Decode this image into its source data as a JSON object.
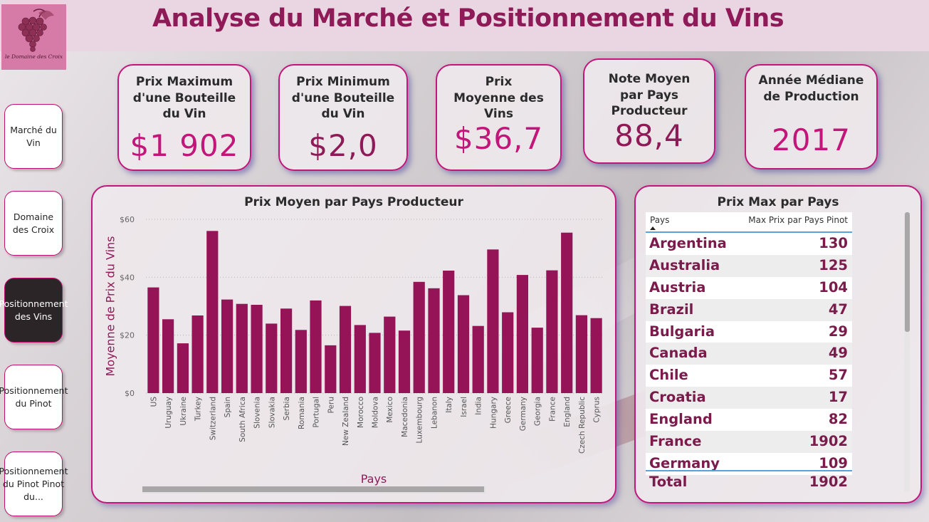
{
  "app": {
    "title": "Analyse du Marché et Positionnement du Vins",
    "logo_text": "le Domaine des Croix"
  },
  "colors": {
    "accent": "#c2177a",
    "bar": "#951458",
    "title": "#8e1a57",
    "active_nav": "#2c2527"
  },
  "nav": {
    "items": [
      {
        "label": "Marché du Vin",
        "active": false
      },
      {
        "label": "Domaine des Croix",
        "active": false
      },
      {
        "label": "Positionnement des Vins",
        "active": true
      },
      {
        "label": "Positionnement du Pinot",
        "active": false
      },
      {
        "label": "Positionnement du Pinot Pinot du...",
        "active": false
      }
    ]
  },
  "kpis": [
    {
      "title": "Prix Maximum d'une Bouteille du Vin",
      "value": "$1 902",
      "color": "#c2177a"
    },
    {
      "title": "Prix Minimum d'une Bouteille du Vin",
      "value": "$2,0",
      "color": "#8e1a57"
    },
    {
      "title": "Prix Moyenne des Vins",
      "value": "$36,7",
      "color": "#c2177a"
    },
    {
      "title": "Note Moyen par Pays Producteur",
      "value": "88,4",
      "color": "#8e1a57"
    },
    {
      "title": "Année Médiane de Production",
      "value": "2017",
      "color": "#c2177a"
    }
  ],
  "chart_data": {
    "type": "bar",
    "title": "Prix Moyen par Pays Producteur",
    "xlabel": "Pays",
    "ylabel": "Moyenne de Prix du Vins",
    "ylim": [
      0,
      60
    ],
    "yticks": [
      "$0",
      "$20",
      "$40",
      "$60"
    ],
    "grid": true,
    "categories": [
      "US",
      "Uruguay",
      "Ukraine",
      "Turkey",
      "Switzerland",
      "Spain",
      "South Africa",
      "Slovenia",
      "Slovakia",
      "Serbia",
      "Romania",
      "Portugal",
      "Peru",
      "New Zealand",
      "Morocco",
      "Moldova",
      "Mexico",
      "Macedonia",
      "Luxembourg",
      "Lebanon",
      "Italy",
      "Israel",
      "India",
      "Hungary",
      "Greece",
      "Germany",
      "Georgia",
      "France",
      "England",
      "Czech Republic",
      "Cyprus"
    ],
    "values": [
      36.5,
      25.5,
      17.2,
      26.8,
      56.0,
      32.3,
      30.8,
      30.5,
      24.0,
      29.2,
      21.8,
      32.0,
      16.5,
      30.1,
      23.5,
      20.8,
      26.4,
      21.6,
      38.4,
      36.2,
      42.3,
      33.8,
      23.2,
      49.6,
      27.9,
      40.8,
      22.6,
      42.4,
      55.4,
      26.9,
      25.9
    ]
  },
  "table": {
    "title": "Prix Max par Pays",
    "columns": [
      "Pays",
      "Max Prix par Pays Pinot"
    ],
    "rows": [
      {
        "pays": "Argentina",
        "max": "130"
      },
      {
        "pays": "Australia",
        "max": "125"
      },
      {
        "pays": "Austria",
        "max": "104"
      },
      {
        "pays": "Brazil",
        "max": "47"
      },
      {
        "pays": "Bulgaria",
        "max": "29"
      },
      {
        "pays": "Canada",
        "max": "49"
      },
      {
        "pays": "Chile",
        "max": "57"
      },
      {
        "pays": "Croatia",
        "max": "17"
      },
      {
        "pays": "England",
        "max": "82"
      },
      {
        "pays": "France",
        "max": "1902"
      },
      {
        "pays": "Germany",
        "max": "109"
      }
    ],
    "total": {
      "label": "Total",
      "value": "1902"
    }
  }
}
